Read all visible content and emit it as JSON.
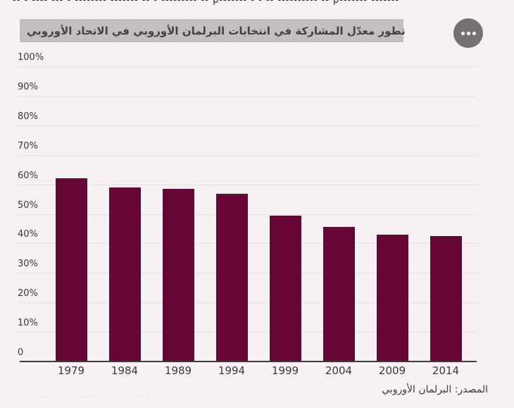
{
  "page": {
    "background": "#f8f1f3",
    "top_clipped_line": "-- - ---- --- - -------- ------- -- - --------- -- p------- - - -- ---------- -- p------- -------",
    "bottom_clipped_line": "-- - --- ------ ---- -------- ---- ----- -----"
  },
  "header": {
    "title": "تطور معدّل المشاركة في انتخابات البرلمان الأوروبي في الاتحاد الأوروبي",
    "banner_bg": "#c3bfc0",
    "options_icon": "ellipsis-icon"
  },
  "chart_data": {
    "type": "bar",
    "title": "تطور معدّل المشاركة في انتخابات البرلمان الأوروبي في الاتحاد الأوروبي",
    "categories": [
      "1979",
      "1984",
      "1989",
      "1994",
      "1999",
      "2004",
      "2009",
      "2014"
    ],
    "values": [
      62,
      59,
      58.4,
      56.7,
      49.5,
      45.5,
      43,
      42.6
    ],
    "unit": "%",
    "xlabel": "",
    "ylabel": "",
    "ylim": [
      0,
      100
    ],
    "ytick_labels": [
      "100%",
      "90%",
      "80%",
      "70%",
      "60%",
      "50%",
      "40%",
      "30%",
      "20%",
      "10%",
      "0"
    ],
    "ytick_values": [
      100,
      90,
      80,
      70,
      60,
      50,
      40,
      30,
      20,
      10,
      0
    ],
    "grid": true,
    "legend": "none",
    "bar_color": "#670637",
    "gridline_color": "#e6e0e2",
    "axis_color": "#3f3b3c",
    "source": "المصدر: البرلمان الأوروبي"
  },
  "footer": {
    "source_label": "المصدر: البرلمان الأوروبي"
  }
}
